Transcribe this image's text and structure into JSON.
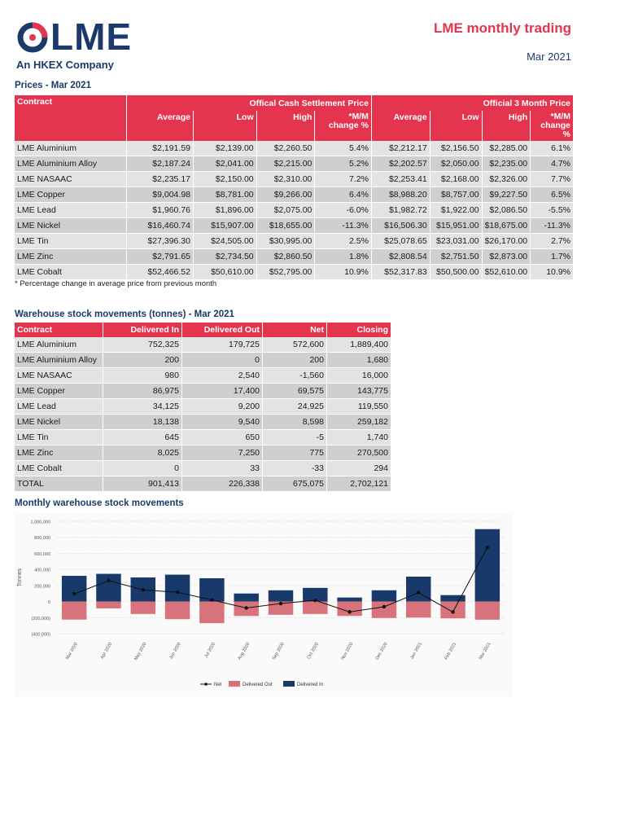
{
  "brand": {
    "name": "LME",
    "tagline": "An HKEX Company",
    "color": "#1b3a6b",
    "accent": "#e4344e"
  },
  "header": {
    "title": "LME monthly trading",
    "date": "Mar 2021"
  },
  "prices": {
    "title": "Prices - Mar 2021",
    "contract_header": "Contract",
    "group_cash": "Offical Cash Settlement Price",
    "group_3m": "Official 3 Month Price",
    "columns": [
      "Average",
      "Low",
      "High",
      "*M/M change %"
    ],
    "rows": [
      {
        "contract": "LME Aluminium",
        "cash": [
          "$2,191.59",
          "$2,139.00",
          "$2,260.50",
          "5.4%"
        ],
        "m3": [
          "$2,212.17",
          "$2,156.50",
          "$2,285.00",
          "6.1%"
        ]
      },
      {
        "contract": "LME Aluminium Alloy",
        "cash": [
          "$2,187.24",
          "$2,041.00",
          "$2,215.00",
          "5.2%"
        ],
        "m3": [
          "$2,202.57",
          "$2,050.00",
          "$2,235.00",
          "4.7%"
        ]
      },
      {
        "contract": "LME NASAAC",
        "cash": [
          "$2,235.17",
          "$2,150.00",
          "$2,310.00",
          "7.2%"
        ],
        "m3": [
          "$2,253.41",
          "$2,168.00",
          "$2,326.00",
          "7.7%"
        ]
      },
      {
        "contract": "LME Copper",
        "cash": [
          "$9,004.98",
          "$8,781.00",
          "$9,266.00",
          "6.4%"
        ],
        "m3": [
          "$8,988.20",
          "$8,757.00",
          "$9,227.50",
          "6.5%"
        ]
      },
      {
        "contract": "LME Lead",
        "cash": [
          "$1,960.76",
          "$1,896.00",
          "$2,075.00",
          "-6.0%"
        ],
        "m3": [
          "$1,982.72",
          "$1,922.00",
          "$2,086.50",
          "-5.5%"
        ]
      },
      {
        "contract": "LME Nickel",
        "cash": [
          "$16,460.74",
          "$15,907.00",
          "$18,655.00",
          "-11.3%"
        ],
        "m3": [
          "$16,506.30",
          "$15,951.00",
          "$18,675.00",
          "-11.3%"
        ]
      },
      {
        "contract": "LME Tin",
        "cash": [
          "$27,396.30",
          "$24,505.00",
          "$30,995.00",
          "2.5%"
        ],
        "m3": [
          "$25,078.65",
          "$23,031.00",
          "$26,170.00",
          "2.7%"
        ]
      },
      {
        "contract": "LME Zinc",
        "cash": [
          "$2,791.65",
          "$2,734.50",
          "$2,860.50",
          "1.8%"
        ],
        "m3": [
          "$2,808.54",
          "$2,751.50",
          "$2,873.00",
          "1.7%"
        ]
      },
      {
        "contract": "LME Cobalt",
        "cash": [
          "$52,466.52",
          "$50,610.00",
          "$52,795.00",
          "10.9%"
        ],
        "m3": [
          "$52,317.83",
          "$50,500.00",
          "$52,610.00",
          "10.9%"
        ]
      }
    ],
    "footnote": "* Percentage change in average price from previous month"
  },
  "stocks": {
    "title": "Warehouse stock movements (tonnes) - Mar 2021",
    "columns": [
      "Contract",
      "Delivered In",
      "Delivered Out",
      "Net",
      "Closing"
    ],
    "rows": [
      [
        "LME Aluminium",
        "752,325",
        "179,725",
        "572,600",
        "1,889,400"
      ],
      [
        "LME Aluminium Alloy",
        "200",
        "0",
        "200",
        "1,680"
      ],
      [
        "LME NASAAC",
        "980",
        "2,540",
        "-1,560",
        "16,000"
      ],
      [
        "LME Copper",
        "86,975",
        "17,400",
        "69,575",
        "143,775"
      ],
      [
        "LME Lead",
        "34,125",
        "9,200",
        "24,925",
        "119,550"
      ],
      [
        "LME Nickel",
        "18,138",
        "9,540",
        "8,598",
        "259,182"
      ],
      [
        "LME Tin",
        "645",
        "650",
        "-5",
        "1,740"
      ],
      [
        "LME Zinc",
        "8,025",
        "7,250",
        "775",
        "270,500"
      ],
      [
        "LME Cobalt",
        "0",
        "33",
        "-33",
        "294"
      ],
      [
        "TOTAL",
        "901,413",
        "226,338",
        "675,075",
        "2,702,121"
      ]
    ]
  },
  "chart_title": "Monthly warehouse stock movements",
  "chart_data": {
    "type": "bar",
    "ylabel": "Tonnes",
    "ylim": [
      -400000,
      1000000
    ],
    "yticks": [
      "1,000,000",
      "800,000",
      "600,000",
      "400,000",
      "200,000",
      "0",
      "(200,000)",
      "(400,000)"
    ],
    "ytick_values": [
      1000000,
      800000,
      600000,
      400000,
      200000,
      0,
      -200000,
      -400000
    ],
    "categories": [
      "Mar 2020",
      "Apr 2020",
      "May 2020",
      "Jun 2020",
      "Jul 2020",
      "Aug 2020",
      "Sep 2020",
      "Oct 2020",
      "Nov 2020",
      "Dec 2020",
      "Jan 2021",
      "Feb 2021",
      "Mar 2021"
    ],
    "series": [
      {
        "name": "Delivered In",
        "type": "bar",
        "color": "#173a6b",
        "values": [
          320000,
          345000,
          300000,
          335000,
          290000,
          100000,
          140000,
          170000,
          50000,
          140000,
          310000,
          80000,
          901413
        ]
      },
      {
        "name": "Delivered Out",
        "type": "bar",
        "color": "#d9737b",
        "values": [
          -225000,
          -85000,
          -155000,
          -220000,
          -270000,
          -180000,
          -165000,
          -155000,
          -180000,
          -205000,
          -200000,
          -210000,
          -226338
        ]
      },
      {
        "name": "Net",
        "type": "line",
        "color": "#111111",
        "values": [
          95000,
          260000,
          145000,
          115000,
          20000,
          -80000,
          -25000,
          15000,
          -130000,
          -65000,
          110000,
          -130000,
          675075
        ]
      }
    ],
    "legend": [
      "Net",
      "Delivered Out",
      "Delivered In"
    ],
    "legend_position": "bottom",
    "grid": true
  }
}
